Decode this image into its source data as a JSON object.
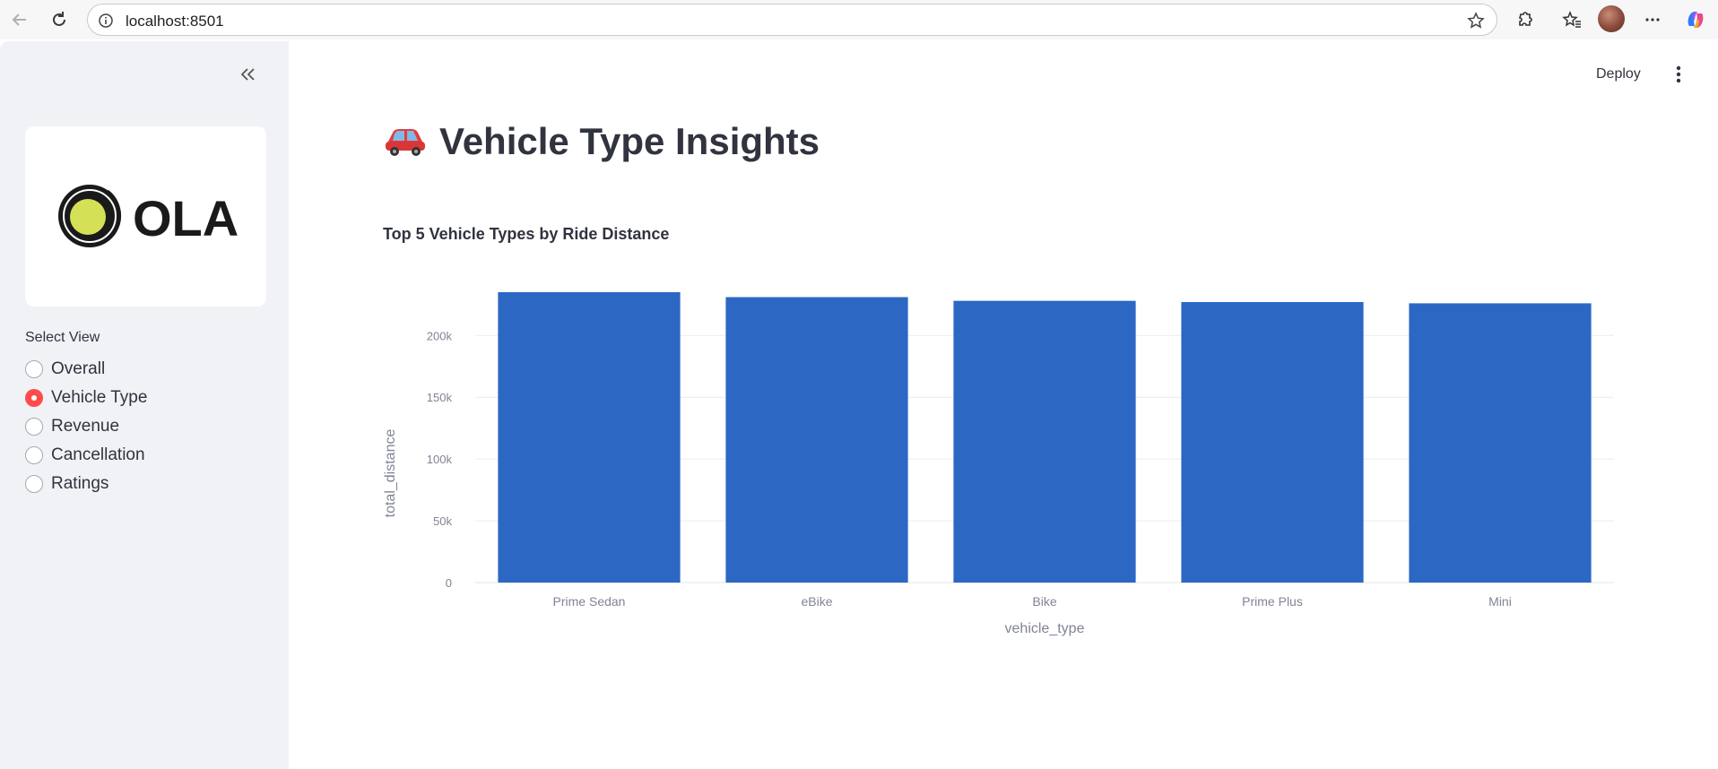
{
  "browser": {
    "url": "localhost:8501"
  },
  "header": {
    "deploy_label": "Deploy"
  },
  "sidebar": {
    "logo_text": "OLA",
    "radio_title": "Select View",
    "options": [
      "Overall",
      "Vehicle Type",
      "Revenue",
      "Cancellation",
      "Ratings"
    ],
    "selected": "Vehicle Type"
  },
  "main": {
    "title": "Vehicle Type Insights",
    "title_icon": "car-emoji"
  },
  "colors": {
    "bar": "#2c67c4",
    "accent": "#ff4b4b",
    "sidebar_bg": "#f0f2f6"
  },
  "chart_data": {
    "type": "bar",
    "title": "Top 5 Vehicle Types by Ride Distance",
    "xlabel": "vehicle_type",
    "ylabel": "total_distance",
    "categories": [
      "Prime Sedan",
      "eBike",
      "Bike",
      "Prime Plus",
      "Mini"
    ],
    "values": [
      235000,
      231000,
      228000,
      227000,
      226000
    ],
    "ylim": [
      0,
      235000
    ],
    "yticks": [
      0,
      50000,
      100000,
      150000,
      200000
    ],
    "ytick_labels": [
      "0",
      "50k",
      "100k",
      "150k",
      "200k"
    ],
    "grid": true
  }
}
